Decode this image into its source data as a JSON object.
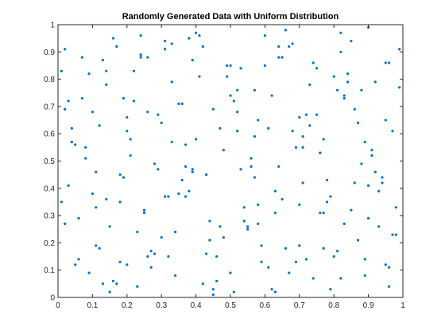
{
  "chart_data": {
    "type": "scatter",
    "title": "Randomly Generated Data with Uniform Distribution",
    "xlabel": "",
    "ylabel": "",
    "xlim": [
      0,
      1
    ],
    "ylim": [
      0,
      1
    ],
    "x_ticks": [
      "0",
      "0.1",
      "0.2",
      "0.3",
      "0.4",
      "0.5",
      "0.6",
      "0.7",
      "0.8",
      "0.9",
      "1"
    ],
    "y_ticks": [
      "0",
      "0.1",
      "0.2",
      "0.3",
      "0.4",
      "0.5",
      "0.6",
      "0.7",
      "0.8",
      "0.9",
      "1"
    ],
    "grid": false,
    "marker_color": "#0072BD",
    "series": [
      {
        "x": [
          0.02,
          0.05,
          0.08,
          0.11,
          0.14,
          0.17,
          0.2,
          0.23,
          0.26,
          0.29,
          0.32,
          0.35,
          0.38,
          0.41,
          0.44,
          0.47,
          0.5,
          0.53,
          0.56,
          0.59,
          0.62,
          0.65,
          0.68,
          0.71,
          0.74,
          0.77,
          0.8,
          0.83,
          0.86,
          0.89,
          0.92,
          0.95,
          0.98,
          0.03,
          0.07,
          0.12,
          0.16,
          0.21,
          0.25,
          0.3,
          0.34,
          0.39,
          0.43,
          0.48,
          0.52,
          0.57,
          0.61,
          0.66,
          0.7,
          0.75,
          0.79,
          0.84,
          0.88,
          0.93,
          0.97,
          0.01,
          0.06,
          0.1,
          0.15,
          0.19,
          0.24,
          0.28,
          0.33,
          0.37,
          0.42,
          0.46,
          0.51,
          0.55,
          0.6,
          0.64,
          0.69,
          0.73,
          0.78,
          0.82,
          0.87,
          0.91,
          0.96,
          0.99,
          0.04,
          0.09,
          0.13,
          0.18,
          0.22,
          0.27,
          0.31,
          0.36,
          0.4,
          0.45,
          0.49,
          0.54,
          0.58,
          0.63,
          0.67,
          0.72,
          0.76,
          0.81,
          0.85,
          0.9,
          0.94,
          0.02,
          0.08,
          0.14,
          0.2,
          0.26,
          0.32,
          0.38,
          0.44,
          0.5,
          0.56,
          0.62,
          0.68,
          0.74,
          0.8,
          0.86,
          0.92,
          0.98,
          0.05,
          0.11,
          0.17,
          0.23,
          0.29,
          0.35,
          0.41,
          0.47,
          0.53,
          0.59,
          0.65,
          0.71,
          0.77,
          0.83,
          0.89,
          0.95,
          0.03,
          0.1,
          0.16,
          0.22,
          0.28,
          0.34,
          0.4,
          0.46,
          0.52,
          0.58,
          0.64,
          0.7,
          0.76,
          0.82,
          0.88,
          0.94,
          0.99,
          0.06,
          0.12,
          0.18,
          0.24,
          0.3,
          0.36,
          0.42,
          0.48,
          0.54,
          0.6,
          0.66,
          0.72,
          0.78,
          0.84,
          0.9,
          0.96,
          0.01,
          0.09,
          0.15,
          0.21,
          0.27,
          0.33,
          0.39,
          0.45,
          0.51,
          0.57,
          0.63,
          0.69,
          0.75,
          0.81,
          0.87,
          0.93,
          0.04,
          0.13,
          0.19,
          0.25,
          0.31,
          0.37,
          0.43,
          0.49,
          0.55,
          0.61,
          0.67,
          0.73,
          0.79,
          0.85,
          0.91,
          0.97,
          0.07,
          0.14,
          0.2,
          0.26,
          0.33,
          0.39,
          0.45,
          0.52,
          0.58,
          0.64,
          0.71,
          0.77,
          0.83,
          0.9,
          0.96,
          0.02,
          0.11,
          0.18,
          0.24,
          0.31,
          0.37,
          0.44,
          0.5,
          0.57,
          0.63,
          0.7,
          0.76,
          0.82,
          0.89,
          0.95
        ],
        "y": [
          0.91,
          0.12,
          0.55,
          0.33,
          0.78,
          0.05,
          0.66,
          0.24,
          0.88,
          0.47,
          0.15,
          0.71,
          0.39,
          0.96,
          0.28,
          0.62,
          0.09,
          0.84,
          0.51,
          0.19,
          0.74,
          0.36,
          0.93,
          0.42,
          0.07,
          0.58,
          0.81,
          0.27,
          0.69,
          0.14,
          0.46,
          0.86,
          0.23,
          0.41,
          0.73,
          0.18,
          0.95,
          0.52,
          0.31,
          0.64,
          0.08,
          0.87,
          0.45,
          0.22,
          0.76,
          0.59,
          0.11,
          0.98,
          0.34,
          0.67,
          0.03,
          0.79,
          0.49,
          0.26,
          0.61,
          0.83,
          0.29,
          0.68,
          0.02,
          0.44,
          0.89,
          0.16,
          0.57,
          0.37,
          0.92,
          0.06,
          0.72,
          0.25,
          0.85,
          0.48,
          0.13,
          0.63,
          0.35,
          0.97,
          0.21,
          0.54,
          0.04,
          0.77,
          0.62,
          0.09,
          0.87,
          0.35,
          0.72,
          0.17,
          0.94,
          0.43,
          0.58,
          0.01,
          0.81,
          0.28,
          0.65,
          0.39,
          0.92,
          0.14,
          0.53,
          0.76,
          0.32,
          0.99,
          0.44,
          0.27,
          0.51,
          0.83,
          0.12,
          0.68,
          0.37,
          0.95,
          0.21,
          0.74,
          0.48,
          0.03,
          0.61,
          0.86,
          0.15,
          0.42,
          0.79,
          0.33,
          0.56,
          0.19,
          0.92,
          0.04,
          0.67,
          0.38,
          0.81,
          0.26,
          0.47,
          0.13,
          0.88,
          0.59,
          0.31,
          0.74,
          0.08,
          0.65,
          0.72,
          0.38,
          0.06,
          0.83,
          0.49,
          0.24,
          0.97,
          0.15,
          0.61,
          0.34,
          0.88,
          0.19,
          0.53,
          0.07,
          0.76,
          0.42,
          0.91,
          0.14,
          0.63,
          0.45,
          0.88,
          0.22,
          0.71,
          0.05,
          0.54,
          0.33,
          0.96,
          0.18,
          0.67,
          0.43,
          0.82,
          0.29,
          0.11,
          0.35,
          0.82,
          0.26,
          0.58,
          0.11,
          0.93,
          0.47,
          0.69,
          0.02,
          0.76,
          0.31,
          0.55,
          0.84,
          0.17,
          0.64,
          0.39,
          0.57,
          0.05,
          0.73,
          0.32,
          0.91,
          0.48,
          0.16,
          0.85,
          0.26,
          0.62,
          0.09,
          0.78,
          0.37,
          0.94,
          0.52,
          0.23,
          0.88,
          0.36,
          0.61,
          0.15,
          0.79,
          0.46,
          0.03,
          0.68,
          0.27,
          0.92,
          0.55,
          0.18,
          0.73,
          0.41,
          0.86,
          0.69,
          0.46,
          0.13,
          0.96,
          0.37,
          0.56,
          0.21,
          0.85,
          0.44,
          0.02,
          0.66,
          0.31,
          0.9,
          0.57,
          0.12
        ]
      }
    ]
  }
}
